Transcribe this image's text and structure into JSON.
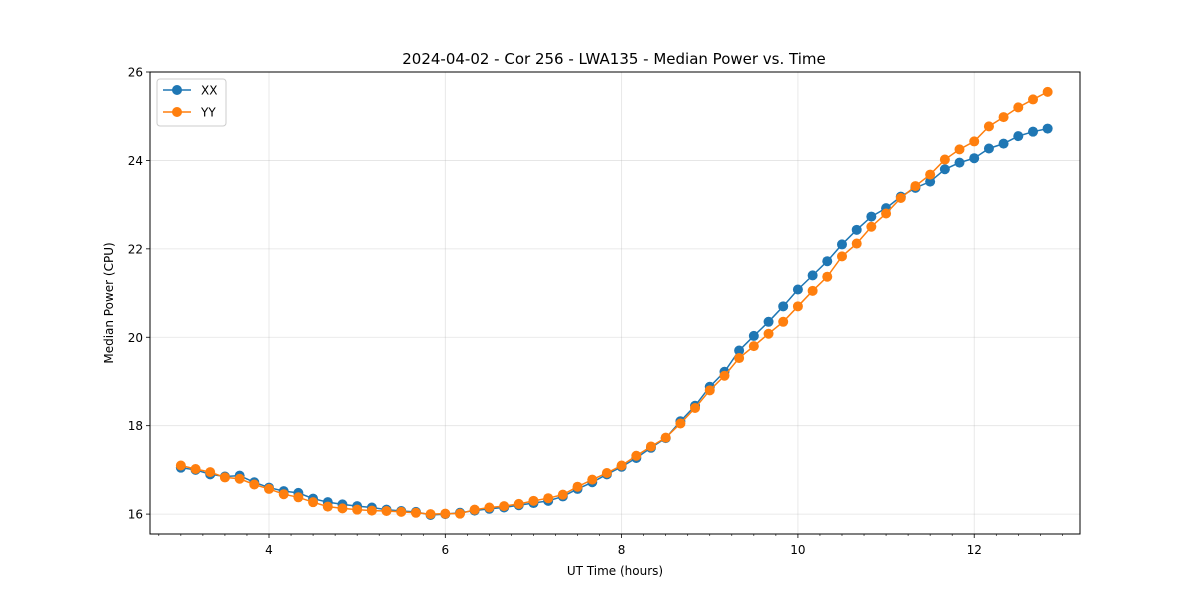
{
  "chart_data": {
    "type": "line",
    "title": "2024-04-02 - Cor 256 - LWA135 - Median Power vs. Time",
    "xlabel": "UT Time (hours)",
    "ylabel": "Median Power (CPU)",
    "xlim": [
      2.65,
      13.2
    ],
    "ylim": [
      15.55,
      26.0
    ],
    "xticks": [
      4,
      6,
      8,
      10,
      12
    ],
    "xtick_labels": [
      "4",
      "6",
      "8",
      "10",
      "12"
    ],
    "yticks": [
      16,
      18,
      20,
      22,
      24,
      26
    ],
    "ytick_labels": [
      "16",
      "18",
      "20",
      "22",
      "24",
      "26"
    ],
    "grid": true,
    "legend_position": "top-left",
    "x": [
      3.0,
      3.167,
      3.333,
      3.5,
      3.667,
      3.833,
      4.0,
      4.167,
      4.333,
      4.5,
      4.667,
      4.833,
      5.0,
      5.167,
      5.333,
      5.5,
      5.667,
      5.833,
      6.0,
      6.167,
      6.333,
      6.5,
      6.667,
      6.833,
      7.0,
      7.167,
      7.333,
      7.5,
      7.667,
      7.833,
      8.0,
      8.167,
      8.333,
      8.5,
      8.667,
      8.833,
      9.0,
      9.167,
      9.333,
      9.5,
      9.667,
      9.833,
      10.0,
      10.167,
      10.333,
      10.5,
      10.667,
      10.833,
      11.0,
      11.167,
      11.333,
      11.5,
      11.667,
      11.833,
      12.0,
      12.167,
      12.333,
      12.5,
      12.667,
      12.833
    ],
    "series": [
      {
        "name": "XX",
        "color": "#1f77b4",
        "values": [
          17.05,
          17.0,
          16.9,
          16.85,
          16.87,
          16.72,
          16.6,
          16.52,
          16.48,
          16.35,
          16.27,
          16.22,
          16.18,
          16.15,
          16.1,
          16.07,
          16.05,
          15.98,
          16.0,
          16.03,
          16.08,
          16.12,
          16.15,
          16.2,
          16.25,
          16.3,
          16.4,
          16.57,
          16.72,
          16.9,
          17.07,
          17.27,
          17.5,
          17.72,
          18.1,
          18.45,
          18.88,
          19.22,
          19.7,
          20.03,
          20.35,
          20.7,
          21.08,
          21.4,
          21.72,
          22.1,
          22.43,
          22.73,
          22.92,
          23.18,
          23.38,
          23.52,
          23.8,
          23.95,
          24.05,
          24.27,
          24.38,
          24.55,
          24.65,
          24.72
        ]
      },
      {
        "name": "YY",
        "color": "#ff7f0e",
        "values": [
          17.1,
          17.02,
          16.95,
          16.83,
          16.8,
          16.67,
          16.57,
          16.45,
          16.38,
          16.27,
          16.17,
          16.13,
          16.1,
          16.08,
          16.07,
          16.05,
          16.03,
          16.0,
          16.01,
          16.01,
          16.1,
          16.15,
          16.18,
          16.23,
          16.3,
          16.36,
          16.44,
          16.62,
          16.78,
          16.93,
          17.1,
          17.32,
          17.53,
          17.73,
          18.05,
          18.4,
          18.8,
          19.13,
          19.53,
          19.8,
          20.08,
          20.35,
          20.7,
          21.05,
          21.37,
          21.83,
          22.12,
          22.5,
          22.8,
          23.15,
          23.42,
          23.68,
          24.02,
          24.25,
          24.43,
          24.77,
          24.98,
          25.2,
          25.38,
          25.55
        ]
      }
    ]
  }
}
